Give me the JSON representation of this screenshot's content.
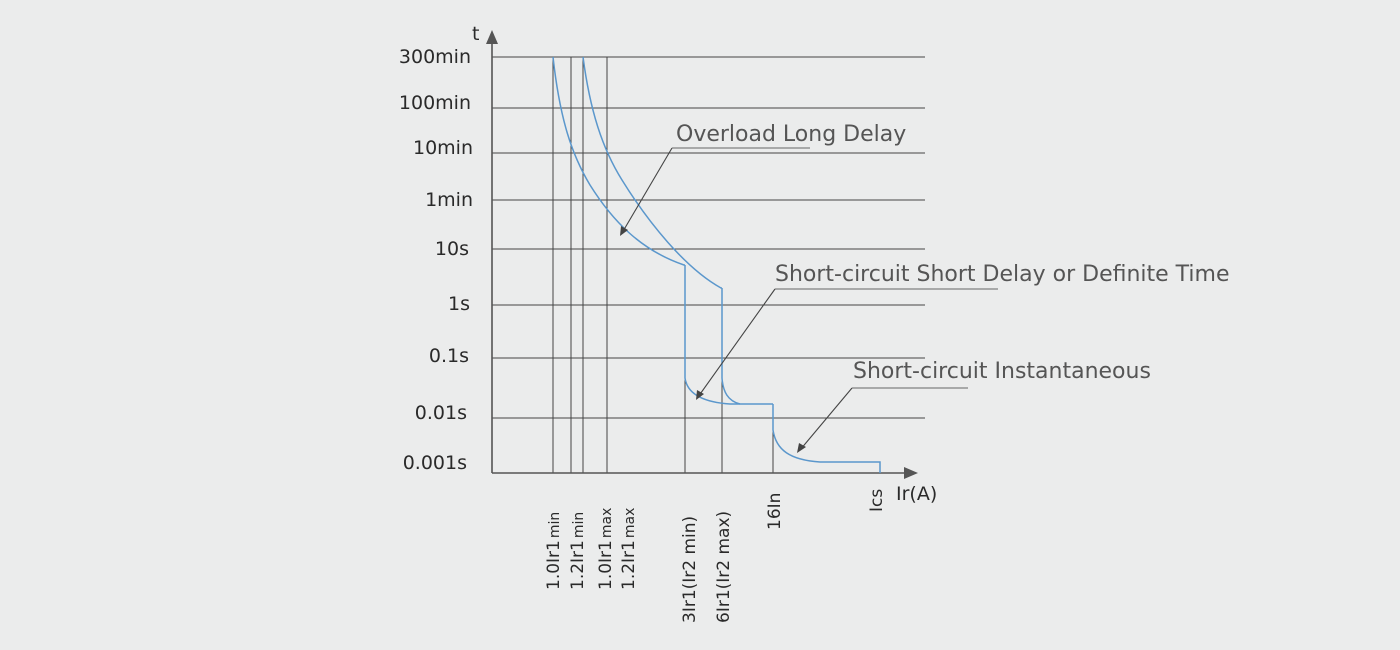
{
  "axes": {
    "y_title": "t",
    "x_title": "Ir(A)"
  },
  "y_ticks": [
    "300min",
    "100min",
    "10min",
    "1min",
    "10s",
    "1s",
    "0.1s",
    "0.01s",
    "0.001s"
  ],
  "x_ticks": [
    {
      "base": "1.0Ir1",
      "sub": "min"
    },
    {
      "base": "1.2Ir1",
      "sub": "min"
    },
    {
      "base": "1.0Ir1",
      "sub": "max"
    },
    {
      "base": "1.2Ir1",
      "sub": "max"
    },
    {
      "base": "3Ir1(Ir2 min)",
      "sub": ""
    },
    {
      "base": "6Ir1(Ir2 max)",
      "sub": ""
    },
    {
      "base": "16In",
      "sub": ""
    },
    {
      "base": "Ics",
      "sub": ""
    }
  ],
  "annotations": {
    "overload": "Overload Long Delay",
    "short_delay": "Short-circuit Short Delay or Definite Time",
    "instantaneous": "Short-circuit Instantaneous"
  }
}
